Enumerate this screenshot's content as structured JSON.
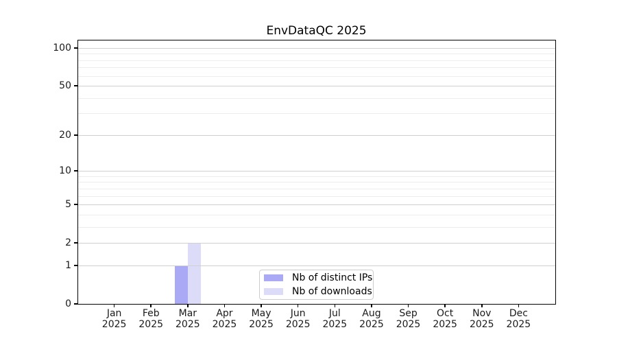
{
  "figure": {
    "background": "#ffffff"
  },
  "chart_data": {
    "type": "bar",
    "title": "EnvDataQC 2025",
    "year": "2025",
    "categories": [
      "Jan",
      "Feb",
      "Mar",
      "Apr",
      "May",
      "Jun",
      "Jul",
      "Aug",
      "Sep",
      "Oct",
      "Nov",
      "Dec"
    ],
    "series": [
      {
        "name": "Nb of distinct IPs",
        "color": "#a9a9f5",
        "values": [
          0,
          0,
          1,
          0,
          0,
          0,
          0,
          0,
          0,
          0,
          0,
          0
        ]
      },
      {
        "name": "Nb of downloads",
        "color": "#dcdcf8",
        "values": [
          0,
          0,
          2,
          0,
          0,
          0,
          0,
          0,
          0,
          0,
          0,
          0
        ]
      }
    ],
    "yscale": "log1p",
    "ylim": [
      0,
      116
    ],
    "yticks": [
      0,
      1,
      2,
      5,
      10,
      20,
      50,
      100
    ],
    "yticks_minor": [
      3,
      4,
      6,
      7,
      8,
      9,
      30,
      40,
      60,
      70,
      80,
      90
    ],
    "grid": "horizontal",
    "legend_position": "lower-center",
    "colors": {
      "grid_major": "#d0d0d0",
      "grid_minor": "#ececec",
      "axis": "#000000",
      "tick_label": "#1a1a1a"
    }
  },
  "legend": {
    "items": [
      {
        "label": "Nb of distinct IPs",
        "color": "#a9a9f5"
      },
      {
        "label": "Nb of downloads",
        "color": "#dcdcf8"
      }
    ]
  }
}
